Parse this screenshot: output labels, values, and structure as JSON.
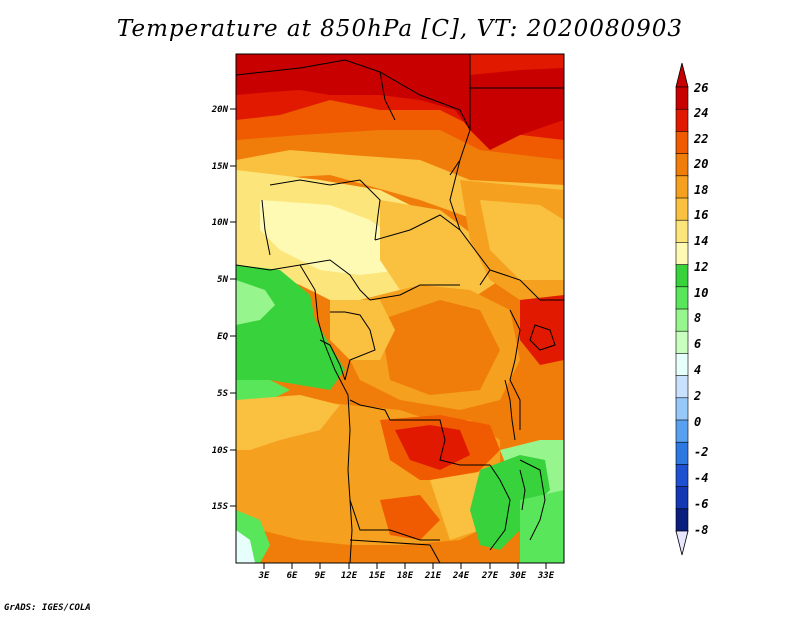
{
  "title": "Temperature at 850hPa [C], VT: 2020080903",
  "credit": "GrADS: IGES/COLA",
  "lat_labels": [
    "20N",
    "15N",
    "10N",
    "5N",
    "EQ",
    "5S",
    "10S",
    "15S"
  ],
  "lon_labels": [
    "3E",
    "6E",
    "9E",
    "12E",
    "15E",
    "18E",
    "21E",
    "24E",
    "27E",
    "30E",
    "33E"
  ],
  "colorbar": {
    "labels": [
      "26",
      "24",
      "22",
      "20",
      "18",
      "16",
      "14",
      "12",
      "10",
      "8",
      "6",
      "4",
      "2",
      "0",
      "-2",
      "-4",
      "-6",
      "-8"
    ],
    "colors": [
      "#c80000",
      "#e11900",
      "#f05a00",
      "#f07d0a",
      "#f5a01e",
      "#fac040",
      "#fce67c",
      "#fefab4",
      "#37d23c",
      "#5ae65a",
      "#96f58c",
      "#c8ffbe",
      "#e6fffa",
      "#c8e1ff",
      "#96c8fa",
      "#5aa0f0",
      "#2d78e1",
      "#1e50d2",
      "#1437b4",
      "#0a1e7d"
    ],
    "top_color": "#c80000",
    "bottom_color": "#e6e6ff"
  },
  "map_colors": {
    "hot": "#c80000",
    "warm1": "#e11900",
    "warm2": "#f05a00",
    "warm3": "#f07d0a",
    "warm4": "#f5a01e",
    "warm5": "#fac040",
    "warm6": "#fce67c",
    "warm7": "#fefab4",
    "green1": "#37d23c",
    "green2": "#5ae65a",
    "green3": "#96f58c",
    "cyan": "#e6fffa"
  }
}
